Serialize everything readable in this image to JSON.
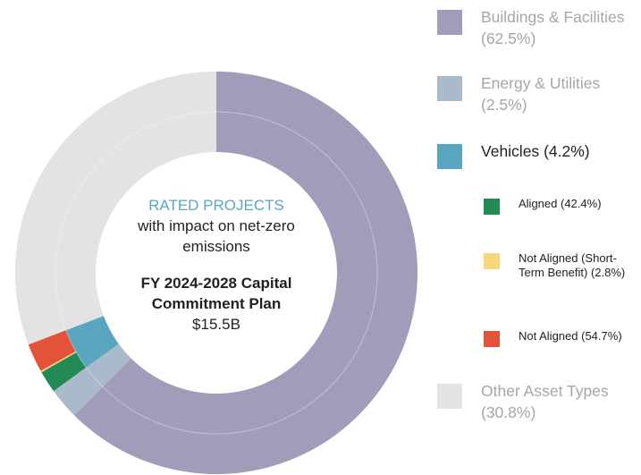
{
  "chart_data": {
    "type": "donut",
    "categories": [
      "Buildings & Facilities",
      "Energy & Utilities",
      "Vehicles",
      "Other Asset Types"
    ],
    "values": [
      62.5,
      2.5,
      4.2,
      30.8
    ],
    "value_labels": [
      "(62.5%)",
      "(2.5%)",
      "(4.2%)",
      "(30.8%)"
    ],
    "colors": [
      "#a09dbb",
      "#a9bacb",
      "#5aa5c0",
      "#e3e3e5"
    ],
    "sub_categories": [
      "Aligned",
      "Not Aligned (Short-Term Benefit)",
      "Not Aligned"
    ],
    "sub_values": [
      42.4,
      2.8,
      54.7
    ],
    "sub_value_labels": [
      "(42.4%)",
      "(2.8%)",
      "(54.7%)"
    ],
    "sub_colors": [
      "#248a55",
      "#f9d67a",
      "#e2533a"
    ],
    "center": {
      "heading": "RATED PROJECTS",
      "subheading": "with impact on net-zero emissions",
      "plan": "FY 2024-2028 Capital Commitment Plan",
      "amount": "$15.5B"
    }
  }
}
